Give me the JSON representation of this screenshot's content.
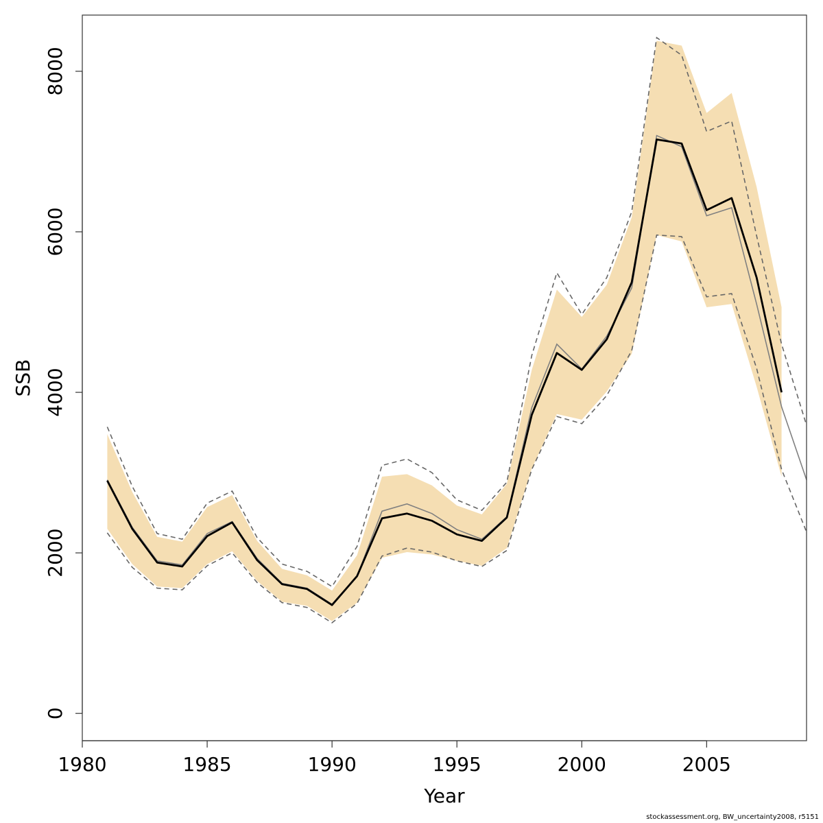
{
  "chart_data": {
    "type": "line",
    "title": "",
    "xlabel": "Year",
    "ylabel": "SSB",
    "xlim": [
      1980,
      2009
    ],
    "ylim": [
      -340,
      8700
    ],
    "x_ticks": [
      "1980",
      "1985",
      "1990",
      "1995",
      "2000",
      "2005"
    ],
    "y_ticks": [
      "0",
      "2000",
      "4000",
      "6000",
      "8000"
    ],
    "grid": false,
    "legend": "none",
    "colors": {
      "band": "#f5deb3",
      "main_line": "#000000",
      "alt_line": "#808080",
      "dashed_lines": "#666666",
      "axis": "#333333"
    },
    "x": [
      1981,
      1982,
      1983,
      1984,
      1985,
      1986,
      1987,
      1988,
      1989,
      1990,
      1991,
      1992,
      1993,
      1994,
      1995,
      1996,
      1997,
      1998,
      1999,
      2000,
      2001,
      2002,
      2003,
      2004,
      2005,
      2006,
      2007,
      2008
    ],
    "band_upper": [
      3480,
      2760,
      2200,
      2140,
      2570,
      2720,
      2150,
      1800,
      1720,
      1530,
      1970,
      2950,
      2980,
      2840,
      2590,
      2480,
      2860,
      4280,
      5280,
      4940,
      5340,
      6180,
      8380,
      8320,
      7480,
      7730,
      6560,
      5060
    ],
    "band_lower": [
      2300,
      1860,
      1580,
      1560,
      1860,
      2020,
      1650,
      1390,
      1340,
      1150,
      1380,
      1940,
      2010,
      1980,
      1900,
      1840,
      2060,
      3050,
      3730,
      3660,
      4010,
      4480,
      5960,
      5880,
      5060,
      5100,
      4070,
      2950
    ],
    "series": [
      {
        "values": [
          2900,
          2300,
          1880,
          1830,
          2210,
          2380,
          1910,
          1610,
          1550,
          1350,
          1710,
          2430,
          2490,
          2400,
          2230,
          2150,
          2440,
          3720,
          4490,
          4280,
          4660,
          5370,
          7150,
          7100,
          6270,
          6420,
          5430,
          4000
        ]
      }
    ],
    "alt_series": {
      "x": [
        1981,
        1982,
        1983,
        1984,
        1985,
        1986,
        1987,
        1988,
        1989,
        1990,
        1991,
        1992,
        1993,
        1994,
        1995,
        1996,
        1997,
        1998,
        1999,
        2000,
        2001,
        2002,
        2003,
        2004,
        2005,
        2006,
        2007,
        2008,
        2009
      ],
      "values": [
        2910,
        2320,
        1900,
        1850,
        2240,
        2390,
        1930,
        1620,
        1560,
        1360,
        1710,
        2520,
        2610,
        2490,
        2290,
        2170,
        2450,
        3810,
        4600,
        4290,
        4700,
        5300,
        7200,
        7060,
        6200,
        6300,
        5100,
        3820,
        2910
      ]
    },
    "dashed_upper": {
      "x": [
        1981,
        1982,
        1983,
        1984,
        1985,
        1986,
        1987,
        1988,
        1989,
        1990,
        1991,
        1992,
        1993,
        1994,
        1995,
        1996,
        1997,
        1998,
        1999,
        2000,
        2001,
        2002,
        2003,
        2004,
        2005,
        2006,
        2007,
        2008,
        2009
      ],
      "values": [
        3570,
        2830,
        2240,
        2170,
        2620,
        2770,
        2190,
        1860,
        1770,
        1580,
        2080,
        3090,
        3170,
        3000,
        2660,
        2530,
        2880,
        4460,
        5490,
        4970,
        5430,
        6250,
        8420,
        8200,
        7250,
        7380,
        5950,
        4600,
        3590
      ]
    },
    "dashed_lower": {
      "x": [
        1981,
        1982,
        1983,
        1984,
        1985,
        1986,
        1987,
        1988,
        1989,
        1990,
        1991,
        1992,
        1993,
        1994,
        1995,
        1996,
        1997,
        1998,
        1999,
        2000,
        2001,
        2002,
        2003,
        2004,
        2005,
        2006,
        2007,
        2008,
        2009
      ],
      "values": [
        2250,
        1820,
        1560,
        1540,
        1840,
        2000,
        1630,
        1380,
        1320,
        1130,
        1370,
        1960,
        2060,
        2010,
        1900,
        1830,
        2030,
        3040,
        3700,
        3610,
        3960,
        4520,
        5960,
        5940,
        5190,
        5230,
        4300,
        3040,
        2260
      ]
    }
  },
  "footer": {
    "note": "stockassessment.org, BW_uncertainty2008, r5151"
  }
}
